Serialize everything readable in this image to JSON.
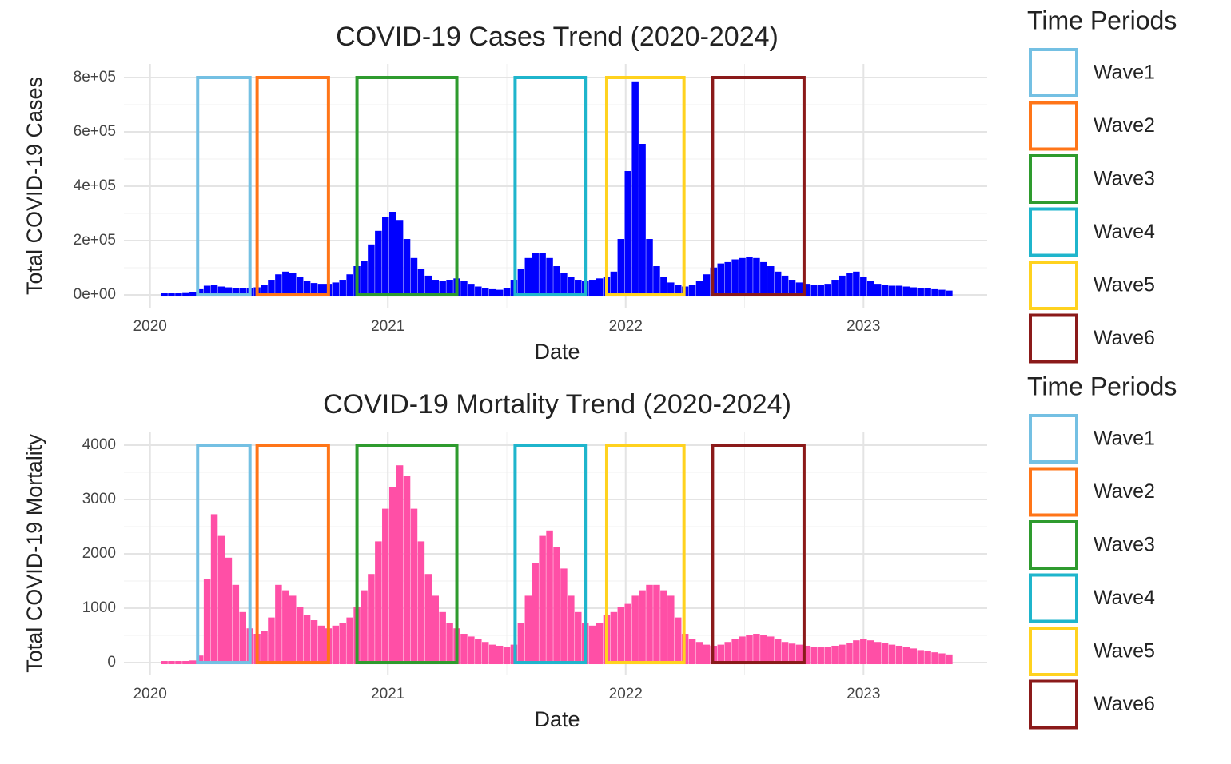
{
  "chart_data": [
    {
      "type": "bar",
      "title": "COVID-19 Cases Trend (2020-2024)",
      "x_label": "Date",
      "y_label": "Total COVID-19 Cases",
      "color": "#0000ff",
      "legend_title": "Time Periods",
      "x": [
        2020.06,
        2020.09,
        2020.12,
        2020.15,
        2020.18,
        2020.21,
        2020.24,
        2020.27,
        2020.3,
        2020.33,
        2020.36,
        2020.39,
        2020.42,
        2020.45,
        2020.48,
        2020.51,
        2020.54,
        2020.57,
        2020.6,
        2020.63,
        2020.66,
        2020.69,
        2020.72,
        2020.75,
        2020.78,
        2020.81,
        2020.84,
        2020.87,
        2020.9,
        2020.93,
        2020.96,
        2020.99,
        2021.02,
        2021.05,
        2021.08,
        2021.11,
        2021.14,
        2021.17,
        2021.2,
        2021.23,
        2021.26,
        2021.29,
        2021.32,
        2021.35,
        2021.38,
        2021.41,
        2021.44,
        2021.47,
        2021.5,
        2021.53,
        2021.56,
        2021.59,
        2021.62,
        2021.65,
        2021.68,
        2021.71,
        2021.74,
        2021.77,
        2021.8,
        2021.83,
        2021.86,
        2021.89,
        2021.92,
        2021.95,
        2021.98,
        2022.01,
        2022.04,
        2022.07,
        2022.1,
        2022.13,
        2022.16,
        2022.19,
        2022.22,
        2022.25,
        2022.28,
        2022.31,
        2022.34,
        2022.37,
        2022.4,
        2022.43,
        2022.46,
        2022.49,
        2022.52,
        2022.55,
        2022.58,
        2022.61,
        2022.64,
        2022.67,
        2022.7,
        2022.73,
        2022.76,
        2022.79,
        2022.82,
        2022.85,
        2022.88,
        2022.91,
        2022.94,
        2022.97,
        2023.0,
        2023.03,
        2023.06,
        2023.09,
        2023.12,
        2023.15,
        2023.18,
        2023.21,
        2023.24,
        2023.27,
        2023.3,
        2023.33,
        2023.36
      ],
      "values": [
        0,
        0,
        0,
        1000,
        3000,
        15000,
        28000,
        30000,
        25000,
        22000,
        20000,
        20000,
        20000,
        22000,
        30000,
        50000,
        70000,
        80000,
        75000,
        60000,
        45000,
        38000,
        35000,
        35000,
        40000,
        50000,
        70000,
        100000,
        120000,
        180000,
        230000,
        280000,
        300000,
        270000,
        200000,
        130000,
        90000,
        65000,
        50000,
        45000,
        50000,
        55000,
        45000,
        35000,
        25000,
        20000,
        15000,
        13000,
        20000,
        50000,
        90000,
        130000,
        150000,
        150000,
        130000,
        100000,
        75000,
        60000,
        50000,
        45000,
        50000,
        55000,
        60000,
        80000,
        200000,
        450000,
        780000,
        550000,
        200000,
        100000,
        60000,
        40000,
        30000,
        25000,
        30000,
        45000,
        70000,
        95000,
        110000,
        115000,
        125000,
        130000,
        135000,
        130000,
        115000,
        100000,
        80000,
        65000,
        50000,
        40000,
        35000,
        30000,
        30000,
        35000,
        50000,
        65000,
        75000,
        80000,
        60000,
        45000,
        35000,
        30000,
        28000,
        28000,
        25000,
        22000,
        20000,
        18000,
        15000,
        13000,
        10000
      ],
      "xlim": [
        2019.89,
        2023.52
      ],
      "xticks": [
        2020,
        2021,
        2022,
        2023
      ],
      "ylim": [
        -47000,
        850000
      ],
      "yticks": [
        {
          "value": 0,
          "label": "0e+00"
        },
        {
          "value": 200000,
          "label": "2e+05"
        },
        {
          "value": 400000,
          "label": "4e+05"
        },
        {
          "value": 600000,
          "label": "6e+05"
        },
        {
          "value": 800000,
          "label": "8e+05"
        }
      ],
      "waves": [
        {
          "name": "Wave1",
          "color": "#74c0e3",
          "start": 2020.2,
          "end": 2020.42,
          "bottom": 0,
          "top": 800000
        },
        {
          "name": "Wave2",
          "color": "#ff7518",
          "start": 2020.45,
          "end": 2020.75,
          "bottom": 0,
          "top": 800000
        },
        {
          "name": "Wave3",
          "color": "#2e9b2e",
          "start": 2020.87,
          "end": 2021.29,
          "bottom": 0,
          "top": 800000
        },
        {
          "name": "Wave4",
          "color": "#1fb5cc",
          "start": 2021.535,
          "end": 2021.83,
          "bottom": 0,
          "top": 800000
        },
        {
          "name": "Wave5",
          "color": "#ffd21f",
          "start": 2021.92,
          "end": 2022.245,
          "bottom": 0,
          "top": 800000
        },
        {
          "name": "Wave6",
          "color": "#8b1a1a",
          "start": 2022.365,
          "end": 2022.75,
          "bottom": 0,
          "top": 800000
        }
      ]
    },
    {
      "type": "bar",
      "title": "COVID-19 Mortality Trend (2020-2024)",
      "x_label": "Date",
      "y_label": "Total COVID-19 Mortality",
      "color": "#ff4fa6",
      "legend_title": "Time Periods",
      "x": [
        2020.06,
        2020.09,
        2020.12,
        2020.15,
        2020.18,
        2020.21,
        2020.24,
        2020.27,
        2020.3,
        2020.33,
        2020.36,
        2020.39,
        2020.42,
        2020.45,
        2020.48,
        2020.51,
        2020.54,
        2020.57,
        2020.6,
        2020.63,
        2020.66,
        2020.69,
        2020.72,
        2020.75,
        2020.78,
        2020.81,
        2020.84,
        2020.87,
        2020.9,
        2020.93,
        2020.96,
        2020.99,
        2021.02,
        2021.05,
        2021.08,
        2021.11,
        2021.14,
        2021.17,
        2021.2,
        2021.23,
        2021.26,
        2021.29,
        2021.32,
        2021.35,
        2021.38,
        2021.41,
        2021.44,
        2021.47,
        2021.5,
        2021.53,
        2021.56,
        2021.59,
        2021.62,
        2021.65,
        2021.68,
        2021.71,
        2021.74,
        2021.77,
        2021.8,
        2021.83,
        2021.86,
        2021.89,
        2021.92,
        2021.95,
        2021.98,
        2022.01,
        2022.04,
        2022.07,
        2022.1,
        2022.13,
        2022.16,
        2022.19,
        2022.22,
        2022.25,
        2022.28,
        2022.31,
        2022.34,
        2022.37,
        2022.4,
        2022.43,
        2022.46,
        2022.49,
        2022.52,
        2022.55,
        2022.58,
        2022.61,
        2022.64,
        2022.67,
        2022.7,
        2022.73,
        2022.76,
        2022.79,
        2022.82,
        2022.85,
        2022.88,
        2022.91,
        2022.94,
        2022.97,
        2023.0,
        2023.03,
        2023.06,
        2023.09,
        2023.12,
        2023.15,
        2023.18,
        2023.21,
        2023.24,
        2023.27,
        2023.3,
        2023.33,
        2023.36
      ],
      "values": [
        0,
        0,
        0,
        0,
        10,
        100,
        1500,
        2700,
        2300,
        1900,
        1400,
        900,
        600,
        500,
        550,
        800,
        1400,
        1300,
        1200,
        1000,
        850,
        750,
        650,
        600,
        650,
        700,
        800,
        1000,
        1300,
        1600,
        2200,
        2800,
        3200,
        3600,
        3400,
        2800,
        2200,
        1600,
        1200,
        900,
        700,
        600,
        500,
        450,
        400,
        350,
        300,
        280,
        250,
        300,
        700,
        1200,
        1800,
        2300,
        2400,
        2100,
        1700,
        1200,
        900,
        700,
        650,
        700,
        850,
        900,
        1000,
        1050,
        1200,
        1300,
        1400,
        1400,
        1300,
        1200,
        800,
        500,
        400,
        350,
        300,
        280,
        300,
        350,
        400,
        450,
        480,
        500,
        480,
        450,
        400,
        350,
        320,
        300,
        280,
        260,
        250,
        260,
        280,
        300,
        330,
        380,
        400,
        380,
        350,
        330,
        300,
        280,
        260,
        230,
        200,
        180,
        160,
        140,
        120
      ],
      "xlim": [
        2019.89,
        2023.52
      ],
      "xticks": [
        2020,
        2021,
        2022,
        2023
      ],
      "ylim": [
        -235,
        4250
      ],
      "yticks": [
        0,
        1000,
        2000,
        3000,
        4000
      ],
      "waves": [
        {
          "name": "Wave1",
          "color": "#74c0e3",
          "start": 2020.2,
          "end": 2020.42,
          "bottom": 0,
          "top": 4000
        },
        {
          "name": "Wave2",
          "color": "#ff7518",
          "start": 2020.45,
          "end": 2020.75,
          "bottom": 0,
          "top": 4000
        },
        {
          "name": "Wave3",
          "color": "#2e9b2e",
          "start": 2020.87,
          "end": 2021.29,
          "bottom": 0,
          "top": 4000
        },
        {
          "name": "Wave4",
          "color": "#1fb5cc",
          "start": 2021.535,
          "end": 2021.83,
          "bottom": 0,
          "top": 4000
        },
        {
          "name": "Wave5",
          "color": "#ffd21f",
          "start": 2021.92,
          "end": 2022.245,
          "bottom": 0,
          "top": 4000
        },
        {
          "name": "Wave6",
          "color": "#8b1a1a",
          "start": 2022.365,
          "end": 2022.75,
          "bottom": 0,
          "top": 4000
        }
      ]
    }
  ]
}
